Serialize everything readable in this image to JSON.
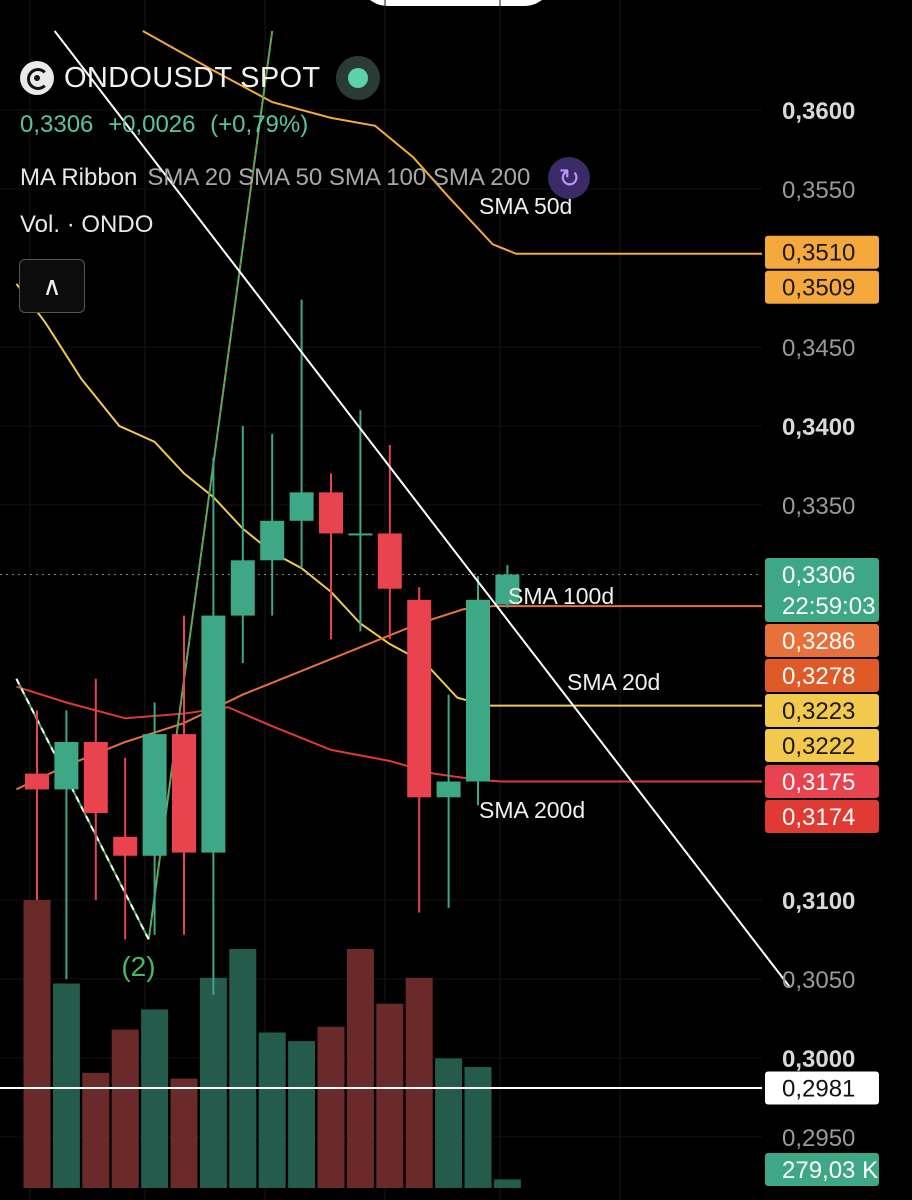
{
  "header": {
    "symbol": "ONDOUSDT SPOT",
    "price": "0,3306",
    "change": "+0,0026",
    "change_pct": "(+0,79%)",
    "indicator_name": "MA Ribbon",
    "indicator_params": "SMA 20 SMA 50 SMA 100 SMA 200",
    "volume_label": "Vol. · ONDO",
    "collapse_icon": "chevron-up-icon",
    "status_icon": "live-dot-icon",
    "loop_icon": "refresh-icon"
  },
  "colors": {
    "background": "#000000",
    "up": "#3ea785",
    "down": "#e8434e",
    "sma20": "#f2c94c",
    "sma50": "#f5a83c",
    "sma100": "#e8703a",
    "sma200": "#e03a32",
    "trendline": "#ffffff",
    "green_line": "#4cb85a"
  },
  "chart_data": {
    "type": "candlestick",
    "y_axis": {
      "min": 0.293,
      "max": 0.365,
      "ticks": [
        "0,3600",
        "0,3550",
        "0,3450",
        "0,3400",
        "0,3350",
        "0,3100",
        "0,3050",
        "0,3000",
        "0,2950"
      ],
      "tick_values": [
        0.36,
        0.355,
        0.345,
        0.34,
        0.335,
        0.31,
        0.305,
        0.3,
        0.295
      ],
      "bold_ticks": [
        "0,3600",
        "0,3400",
        "0,3100",
        "0,3000"
      ]
    },
    "candles": [
      {
        "o": 0.318,
        "h": 0.322,
        "l": 0.31,
        "c": 0.317
      },
      {
        "o": 0.317,
        "h": 0.322,
        "l": 0.305,
        "c": 0.32
      },
      {
        "o": 0.32,
        "h": 0.324,
        "l": 0.31,
        "c": 0.3155
      },
      {
        "o": 0.314,
        "h": 0.319,
        "l": 0.3075,
        "c": 0.3128
      },
      {
        "o": 0.3128,
        "h": 0.3225,
        "l": 0.3078,
        "c": 0.3205
      },
      {
        "o": 0.3205,
        "h": 0.328,
        "l": 0.3078,
        "c": 0.313
      },
      {
        "o": 0.313,
        "h": 0.338,
        "l": 0.304,
        "c": 0.328
      },
      {
        "o": 0.328,
        "h": 0.34,
        "l": 0.325,
        "c": 0.3315
      },
      {
        "o": 0.3315,
        "h": 0.3395,
        "l": 0.328,
        "c": 0.334
      },
      {
        "o": 0.334,
        "h": 0.348,
        "l": 0.331,
        "c": 0.3358
      },
      {
        "o": 0.3358,
        "h": 0.337,
        "l": 0.3265,
        "c": 0.3332
      },
      {
        "o": 0.3332,
        "h": 0.341,
        "l": 0.327,
        "c": 0.3332
      },
      {
        "o": 0.3332,
        "h": 0.3388,
        "l": 0.3265,
        "c": 0.3297
      },
      {
        "o": 0.329,
        "h": 0.3298,
        "l": 0.3092,
        "c": 0.3165
      },
      {
        "o": 0.3165,
        "h": 0.323,
        "l": 0.3095,
        "c": 0.3175
      },
      {
        "o": 0.3175,
        "h": 0.3305,
        "l": 0.316,
        "c": 0.329
      },
      {
        "o": 0.3287,
        "h": 0.3312,
        "l": 0.3285,
        "c": 0.3306
      }
    ],
    "volumes": [
      {
        "v": 1.0,
        "dir": "down"
      },
      {
        "v": 0.71,
        "dir": "up"
      },
      {
        "v": 0.4,
        "dir": "down"
      },
      {
        "v": 0.55,
        "dir": "down"
      },
      {
        "v": 0.62,
        "dir": "up"
      },
      {
        "v": 0.38,
        "dir": "down"
      },
      {
        "v": 0.73,
        "dir": "up"
      },
      {
        "v": 0.83,
        "dir": "up"
      },
      {
        "v": 0.54,
        "dir": "up"
      },
      {
        "v": 0.51,
        "dir": "up"
      },
      {
        "v": 0.56,
        "dir": "down"
      },
      {
        "v": 0.83,
        "dir": "down"
      },
      {
        "v": 0.64,
        "dir": "down"
      },
      {
        "v": 0.73,
        "dir": "down"
      },
      {
        "v": 0.45,
        "dir": "up"
      },
      {
        "v": 0.42,
        "dir": "up"
      },
      {
        "v": 0.03,
        "dir": "up"
      }
    ],
    "sma_lines": [
      {
        "name": "SMA 20d",
        "label": "SMA 20d",
        "color_key": "sma20",
        "points": [
          [
            -0.7,
            0.349
          ],
          [
            0.3,
            0.3465
          ],
          [
            1.5,
            0.343
          ],
          [
            2.8,
            0.34
          ],
          [
            4,
            0.339
          ],
          [
            5,
            0.337
          ],
          [
            6,
            0.3355
          ],
          [
            7,
            0.3335
          ],
          [
            8,
            0.332
          ],
          [
            9,
            0.331
          ],
          [
            10,
            0.3295
          ],
          [
            11,
            0.3275
          ],
          [
            12,
            0.3262
          ],
          [
            13.2,
            0.325
          ],
          [
            14.3,
            0.3228
          ],
          [
            15.3,
            0.3223
          ],
          [
            26,
            0.3223
          ]
        ]
      },
      {
        "name": "SMA 50d",
        "label": "SMA 50d",
        "color_key": "sma50",
        "points": [
          [
            3.6,
            0.365
          ],
          [
            6,
            0.3625
          ],
          [
            8,
            0.3605
          ],
          [
            10,
            0.3595
          ],
          [
            11.5,
            0.359
          ],
          [
            12.8,
            0.357
          ],
          [
            14,
            0.3545
          ],
          [
            15.5,
            0.3515
          ],
          [
            16.3,
            0.3509
          ],
          [
            26,
            0.3509
          ]
        ]
      },
      {
        "name": "SMA 100d",
        "label": "SMA 100d",
        "color_key": "sma100",
        "points": [
          [
            -0.7,
            0.317
          ],
          [
            1,
            0.3185
          ],
          [
            3,
            0.32
          ],
          [
            5,
            0.3212
          ],
          [
            7,
            0.323
          ],
          [
            9,
            0.3245
          ],
          [
            11,
            0.326
          ],
          [
            13,
            0.3275
          ],
          [
            14.5,
            0.3284
          ],
          [
            15.5,
            0.3286
          ],
          [
            26,
            0.3286
          ]
        ]
      },
      {
        "name": "SMA 200d",
        "label": "SMA 200d",
        "color_key": "sma200",
        "points": [
          [
            -0.7,
            0.3235
          ],
          [
            1,
            0.3225
          ],
          [
            3,
            0.3215
          ],
          [
            5,
            0.3218
          ],
          [
            6.5,
            0.3222
          ],
          [
            8,
            0.321
          ],
          [
            10,
            0.3195
          ],
          [
            12,
            0.3188
          ],
          [
            13.5,
            0.318
          ],
          [
            15,
            0.3176
          ],
          [
            15.8,
            0.3175
          ],
          [
            26,
            0.3175
          ]
        ]
      }
    ],
    "trendline": {
      "points": [
        [
          0.6,
          0.365
        ],
        [
          25.6,
          0.3045
        ]
      ]
    },
    "green_lines": [
      {
        "points": [
          [
            3.8,
            0.3075
          ],
          [
            8.0,
            0.365
          ]
        ]
      },
      {
        "points": [
          [
            -0.7,
            0.324
          ],
          [
            3.8,
            0.3075
          ]
        ],
        "dashed": true
      }
    ],
    "annotation": {
      "text": "(2)",
      "x": 3.45,
      "y": 0.3052
    },
    "price_tags": [
      {
        "text": "0,3510",
        "value": 0.351,
        "color": "#f5a83c",
        "text_color": "#1a1a1a"
      },
      {
        "text": "0,3509",
        "value": 0.3509,
        "color": "#f5a83c",
        "text_color": "#1a1a1a"
      },
      {
        "text": "0,3306",
        "value": 0.3306,
        "color": "#3ea785",
        "text_color": "#ffffff",
        "subtext": "22:59:03"
      },
      {
        "text": "0,3286",
        "value": 0.3286,
        "color": "#e8703a",
        "text_color": "#ffffff"
      },
      {
        "text": "0,3278",
        "value": 0.3278,
        "color": "#e05a28",
        "text_color": "#ffffff"
      },
      {
        "text": "0,3223",
        "value": 0.3223,
        "color": "#f2c94c",
        "text_color": "#1a1a1a"
      },
      {
        "text": "0,3222",
        "value": 0.3222,
        "color": "#f2c94c",
        "text_color": "#1a1a1a"
      },
      {
        "text": "0,3175",
        "value": 0.3175,
        "color": "#e8434e",
        "text_color": "#ffffff"
      },
      {
        "text": "0,3174",
        "value": 0.3174,
        "color": "#e03a32",
        "text_color": "#ffffff"
      },
      {
        "text": "0,2981",
        "value": 0.2981,
        "color": "#ffffff",
        "text_color": "#111111"
      }
    ],
    "volume_tag": {
      "text": "279,03 K",
      "color": "#3ea785"
    },
    "horizontal_line": {
      "value": 0.2981,
      "color": "#ffffff"
    },
    "last_price_line": {
      "value": 0.3306
    }
  }
}
